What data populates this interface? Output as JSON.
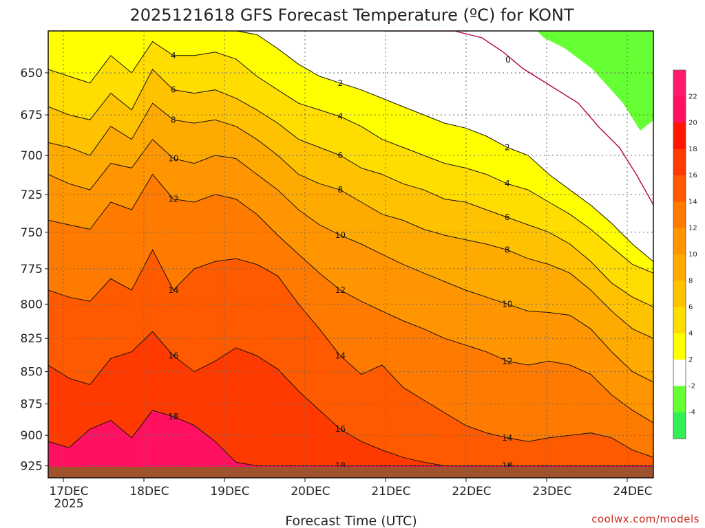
{
  "chart_data": {
    "type": "heatmap",
    "title": "2025121618 GFS Forecast Temperature (ºC) for KONT",
    "xlabel": "Forecast Time (UTC)",
    "ylabel": "",
    "credit": "coolwx.com/models",
    "x_ticks": [
      "17DEC",
      "18DEC",
      "19DEC",
      "20DEC",
      "21DEC",
      "22DEC",
      "23DEC",
      "24DEC"
    ],
    "x_year": "2025",
    "y_ticks": [
      "650",
      "675",
      "700",
      "725",
      "750",
      "775",
      "800",
      "825",
      "850",
      "875",
      "900",
      "925"
    ],
    "ylim": [
      935,
      626
    ],
    "y_scale": "log-pressure",
    "colorbar": {
      "labels": [
        "22",
        "20",
        "18",
        "16",
        "14",
        "12",
        "10",
        "8",
        "6",
        "4",
        "2",
        "-2",
        "-4"
      ],
      "bands": [
        {
          "min": -6,
          "max": -4,
          "color": "#33ee55"
        },
        {
          "min": -4,
          "max": -2,
          "color": "#66ff33"
        },
        {
          "min": -2,
          "max": 2,
          "color": "#ffffff"
        },
        {
          "min": 2,
          "max": 4,
          "color": "#ffff00"
        },
        {
          "min": 4,
          "max": 6,
          "color": "#ffdd00"
        },
        {
          "min": 6,
          "max": 8,
          "color": "#ffc200"
        },
        {
          "min": 8,
          "max": 10,
          "color": "#ffaa00"
        },
        {
          "min": 10,
          "max": 12,
          "color": "#ff9500"
        },
        {
          "min": 12,
          "max": 14,
          "color": "#ff7a00"
        },
        {
          "min": 14,
          "max": 16,
          "color": "#ff5a00"
        },
        {
          "min": 16,
          "max": 18,
          "color": "#ff3a00"
        },
        {
          "min": 18,
          "max": 20,
          "color": "#ff1500"
        },
        {
          "min": 20,
          "max": 22,
          "color": "#ff1060"
        },
        {
          "min": 22,
          "max": 24,
          "color": "#ff1a6b"
        }
      ]
    },
    "contour_levels": [
      {
        "level": 18,
        "pressure": [
          905,
          910,
          895,
          888,
          902,
          880,
          885,
          892,
          905,
          922,
          925,
          925,
          925,
          925,
          925,
          925,
          925,
          925,
          925,
          925,
          925,
          925,
          925,
          925,
          925,
          925,
          925,
          925,
          925,
          925
        ]
      },
      {
        "level": 16,
        "pressure": [
          845,
          855,
          860,
          840,
          835,
          820,
          838,
          850,
          842,
          832,
          838,
          848,
          865,
          880,
          895,
          905,
          912,
          918,
          922,
          925,
          925,
          925,
          925,
          925,
          925,
          925,
          925,
          925,
          925,
          925
        ]
      },
      {
        "level": 14,
        "pressure": [
          790,
          795,
          798,
          782,
          790,
          762,
          790,
          775,
          770,
          768,
          772,
          780,
          800,
          818,
          838,
          852,
          845,
          862,
          872,
          882,
          892,
          898,
          902,
          905,
          902,
          900,
          898,
          902,
          912,
          918
        ]
      },
      {
        "level": 12,
        "pressure": [
          742,
          745,
          748,
          730,
          735,
          712,
          728,
          730,
          725,
          728,
          738,
          752,
          765,
          778,
          790,
          798,
          805,
          812,
          818,
          825,
          830,
          835,
          842,
          845,
          842,
          845,
          852,
          868,
          880,
          890
        ]
      },
      {
        "level": 10,
        "pressure": [
          712,
          718,
          722,
          705,
          708,
          690,
          702,
          705,
          700,
          702,
          712,
          722,
          735,
          745,
          752,
          758,
          765,
          772,
          778,
          784,
          790,
          795,
          800,
          805,
          806,
          808,
          818,
          835,
          850,
          858
        ]
      },
      {
        "level": 8,
        "pressure": [
          692,
          695,
          700,
          682,
          690,
          668,
          678,
          680,
          678,
          682,
          690,
          700,
          712,
          718,
          722,
          730,
          738,
          742,
          748,
          752,
          755,
          758,
          762,
          768,
          772,
          778,
          790,
          805,
          818,
          825
        ]
      },
      {
        "level": 6,
        "pressure": [
          670,
          675,
          678,
          662,
          672,
          648,
          660,
          662,
          660,
          665,
          672,
          680,
          690,
          695,
          700,
          708,
          712,
          718,
          722,
          728,
          730,
          735,
          740,
          745,
          750,
          758,
          770,
          785,
          795,
          802
        ]
      },
      {
        "level": 4,
        "pressure": [
          648,
          652,
          656,
          640,
          650,
          632,
          640,
          640,
          638,
          642,
          652,
          660,
          668,
          672,
          676,
          682,
          690,
          695,
          700,
          705,
          708,
          712,
          718,
          722,
          730,
          738,
          748,
          760,
          772,
          778
        ]
      },
      {
        "level": 2,
        "pressure": [
          626,
          626,
          626,
          626,
          626,
          626,
          626,
          626,
          626,
          626,
          628,
          636,
          645,
          652,
          656,
          660,
          665,
          670,
          675,
          680,
          683,
          688,
          695,
          700,
          712,
          722,
          732,
          744,
          758,
          770
        ]
      }
    ]
  }
}
